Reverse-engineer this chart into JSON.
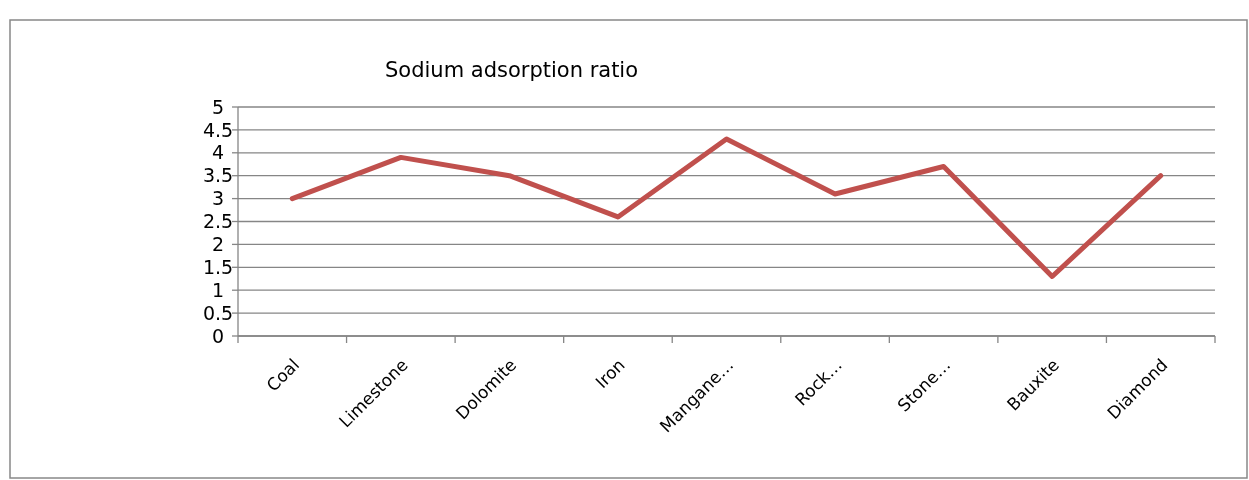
{
  "chart_data": {
    "type": "line",
    "title": "Sodium adsorption ratio",
    "categories": [
      "Coal",
      "Limestone",
      "Dolomite",
      "Iron",
      "Mangane…",
      "Rock…",
      "Stone…",
      "Bauxite",
      "Diamond"
    ],
    "series": [
      {
        "color": "#c0504d",
        "values": [
          3,
          3.9,
          3.5,
          2.6,
          4.3,
          3.1,
          3.7,
          1.3,
          3.5
        ]
      }
    ],
    "ylim": [
      0,
      5
    ],
    "yticks": [
      0,
      0.5,
      1,
      1.5,
      2,
      2.5,
      3,
      3.5,
      4,
      4.5,
      5
    ],
    "grid": "y",
    "marker": "none",
    "line_style": "solid"
  }
}
